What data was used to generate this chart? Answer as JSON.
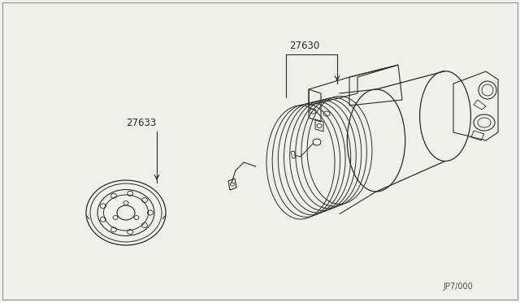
{
  "bg_color": "#f0efe8",
  "line_color": "#2a2a2a",
  "label_color": "#2a2a2a",
  "part_label_27630": "27630",
  "part_label_27633": "27633",
  "ref_label": "JP7/000",
  "fig_width": 6.4,
  "fig_height": 3.72,
  "dpi": 100
}
